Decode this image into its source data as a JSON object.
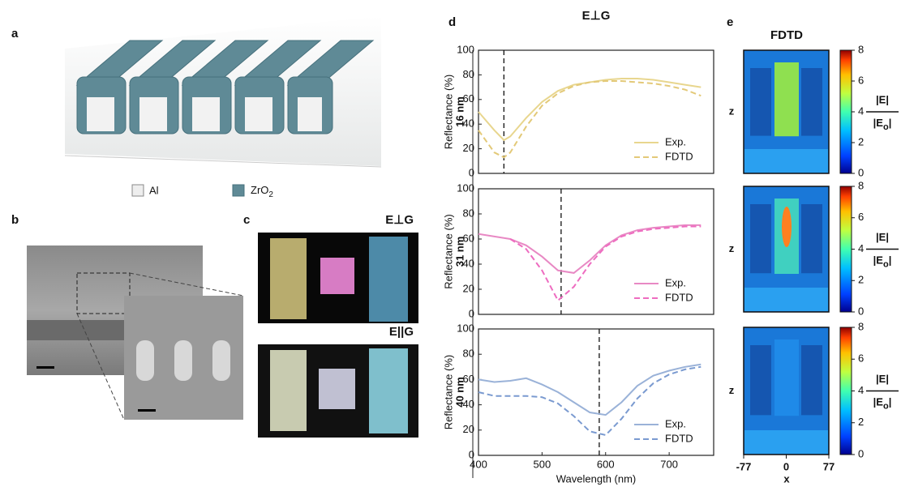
{
  "panel_labels": [
    "a",
    "b",
    "c",
    "d",
    "e"
  ],
  "legend_a": {
    "al": "Al",
    "zro2": [
      "ZrO",
      "2"
    ]
  },
  "photos": {
    "perp": "E⊥G",
    "par": "E||G"
  },
  "d_title": "E⊥G",
  "chart_data": [
    {
      "type": "line",
      "label": "16 nm",
      "y_label": "Reflectance (%)",
      "x": [
        400,
        425,
        440,
        450,
        475,
        500,
        525,
        550,
        575,
        600,
        625,
        650,
        675,
        700,
        725,
        750
      ],
      "xlim": [
        400,
        770
      ],
      "ylim": [
        0,
        100
      ],
      "yticks": [
        0,
        20,
        40,
        60,
        80,
        100
      ],
      "marker_x": 440,
      "series": [
        {
          "name": "Exp.",
          "color": "#e8d68e",
          "dash": false,
          "values": [
            50,
            35,
            27,
            30,
            45,
            58,
            67,
            72,
            74,
            76,
            77,
            77,
            76,
            74,
            72,
            70
          ]
        },
        {
          "name": "FDTD",
          "color": "#e3c978",
          "dash": true,
          "values": [
            35,
            17,
            13,
            17,
            38,
            55,
            65,
            71,
            74,
            75,
            75,
            74,
            73,
            71,
            68,
            63
          ]
        }
      ]
    },
    {
      "type": "line",
      "label": "31 nm",
      "y_label": "Reflectance (%)",
      "x": [
        400,
        425,
        450,
        475,
        500,
        525,
        550,
        575,
        600,
        625,
        650,
        675,
        700,
        725,
        750
      ],
      "xlim": [
        400,
        770
      ],
      "ylim": [
        0,
        100
      ],
      "yticks": [
        0,
        20,
        40,
        60,
        80,
        100
      ],
      "marker_x": 530,
      "series": [
        {
          "name": "Exp.",
          "color": "#e889c4",
          "dash": false,
          "values": [
            64,
            62,
            60,
            55,
            46,
            35,
            33,
            43,
            55,
            63,
            67,
            69,
            70,
            71,
            71
          ]
        },
        {
          "name": "FDTD",
          "color": "#ee6cc0",
          "dash": true,
          "values": [
            null,
            null,
            60,
            52,
            35,
            11,
            22,
            40,
            54,
            62,
            66,
            68,
            69,
            70,
            70
          ]
        }
      ]
    },
    {
      "type": "line",
      "label": "40 nm",
      "y_label": "Reflectance (%)",
      "x_label": "Wavelength (nm)",
      "x": [
        400,
        425,
        450,
        475,
        500,
        525,
        550,
        575,
        600,
        625,
        650,
        675,
        700,
        725,
        750
      ],
      "xlim": [
        400,
        770
      ],
      "ylim": [
        0,
        100
      ],
      "xticks": [
        400,
        500,
        600,
        700
      ],
      "yticks": [
        0,
        20,
        40,
        60,
        80,
        100
      ],
      "marker_x": 590,
      "series": [
        {
          "name": "Exp.",
          "color": "#9ab2d8",
          "dash": false,
          "values": [
            60,
            58,
            59,
            61,
            56,
            50,
            42,
            34,
            32,
            42,
            55,
            63,
            67,
            70,
            72
          ]
        },
        {
          "name": "FDTD",
          "color": "#7a9ad0",
          "dash": true,
          "values": [
            50,
            47,
            47,
            47,
            46,
            41,
            31,
            19,
            16,
            29,
            45,
            57,
            64,
            68,
            70
          ]
        }
      ]
    }
  ],
  "field_maps": {
    "title": "FDTD",
    "z_label": "z",
    "colorbar_lim": [
      0,
      8
    ],
    "colorbar_ticks": [
      0,
      2,
      4,
      6,
      8
    ],
    "numerator": "|E|",
    "denominator": [
      "|E",
      "o",
      "|"
    ],
    "xlim": [
      -77,
      77
    ],
    "xticks": [
      -77,
      0,
      77
    ],
    "x_label": "x"
  }
}
